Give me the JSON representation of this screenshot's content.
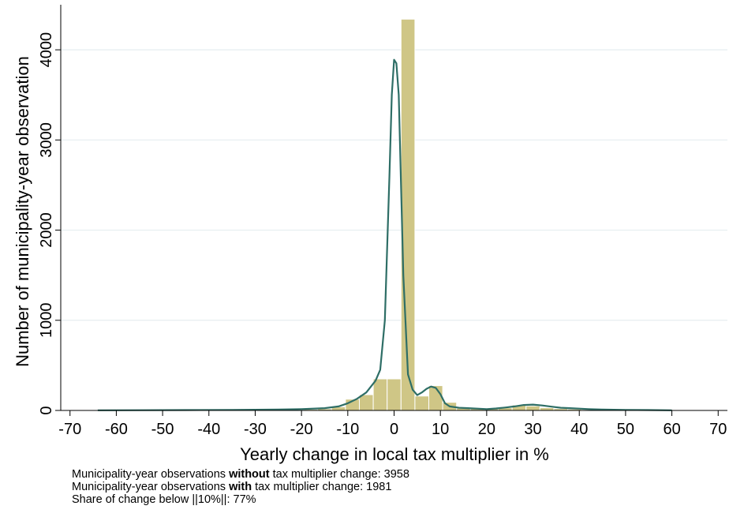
{
  "chart_data": {
    "type": "bar",
    "xlabel": "Yearly change in local tax multiplier in %",
    "ylabel": "Number of municipality-year observation",
    "xlim": [
      -72,
      72
    ],
    "ylim": [
      0,
      4500
    ],
    "xticks": [
      -70,
      -60,
      -50,
      -40,
      -30,
      -20,
      -10,
      0,
      10,
      20,
      30,
      40,
      50,
      60,
      70
    ],
    "yticks": [
      0,
      1000,
      2000,
      3000,
      4000
    ],
    "grid": "horizontal",
    "colors": {
      "bars": "#cfc686",
      "bar_edge": "#ffffff",
      "density": "#2e6e66",
      "grid": "#e6eef0"
    },
    "histogram": {
      "bin_width": 3,
      "bins": [
        {
          "x": -63,
          "count": 8
        },
        {
          "x": -48,
          "count": 6
        },
        {
          "x": -36,
          "count": 6
        },
        {
          "x": -30,
          "count": 5
        },
        {
          "x": -27,
          "count": 5
        },
        {
          "x": -24,
          "count": 4
        },
        {
          "x": -21,
          "count": 8
        },
        {
          "x": -18,
          "count": 12
        },
        {
          "x": -15,
          "count": 18
        },
        {
          "x": -12,
          "count": 40
        },
        {
          "x": -9,
          "count": 125
        },
        {
          "x": -6,
          "count": 175
        },
        {
          "x": -3,
          "count": 350
        },
        {
          "x": 0,
          "count": 350
        },
        {
          "x": 3,
          "count": 4340
        },
        {
          "x": 6,
          "count": 160
        },
        {
          "x": 9,
          "count": 275
        },
        {
          "x": 12,
          "count": 90
        },
        {
          "x": 15,
          "count": 25
        },
        {
          "x": 18,
          "count": 20
        },
        {
          "x": 21,
          "count": 20
        },
        {
          "x": 24,
          "count": 30
        },
        {
          "x": 27,
          "count": 60
        },
        {
          "x": 30,
          "count": 50
        },
        {
          "x": 33,
          "count": 30
        },
        {
          "x": 36,
          "count": 20
        },
        {
          "x": 39,
          "count": 15
        },
        {
          "x": 42,
          "count": 10
        },
        {
          "x": 45,
          "count": 8
        },
        {
          "x": 48,
          "count": 6
        },
        {
          "x": 51,
          "count": 5
        },
        {
          "x": 57,
          "count": 5
        }
      ]
    },
    "density_curve": {
      "x": [
        -64,
        -55,
        -45,
        -35,
        -25,
        -20,
        -15,
        -12,
        -10,
        -8,
        -6,
        -4,
        -3,
        -2,
        -1,
        -0.5,
        0,
        0.5,
        1,
        1.5,
        2,
        3,
        4,
        5,
        6,
        7,
        8,
        9,
        10,
        11,
        12,
        14,
        16,
        18,
        20,
        22,
        24,
        26,
        28,
        30,
        32,
        34,
        36,
        38,
        40,
        42,
        45,
        50,
        55,
        60
      ],
      "y": [
        2,
        3,
        4,
        6,
        10,
        15,
        25,
        45,
        80,
        130,
        200,
        330,
        450,
        1000,
        2600,
        3500,
        3890,
        3850,
        3500,
        2500,
        1500,
        400,
        230,
        170,
        200,
        240,
        265,
        250,
        180,
        80,
        45,
        30,
        25,
        20,
        15,
        22,
        32,
        45,
        60,
        65,
        55,
        42,
        30,
        25,
        20,
        15,
        10,
        6,
        4,
        2
      ]
    }
  },
  "notes": {
    "line1": {
      "before": "Municipality-year observations ",
      "bold": "without",
      "after": " tax multiplier change: 3958"
    },
    "line2": {
      "before": "Municipality-year observations ",
      "bold": "with",
      "after": " tax multiplier change: 1981"
    },
    "line3": "Share of change below ||10%||: 77%"
  }
}
